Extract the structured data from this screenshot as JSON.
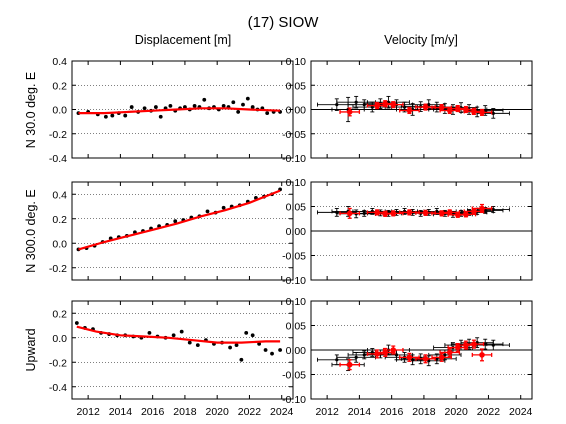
{
  "figure": {
    "title": "(17) SIOW",
    "disp_header": "Displacement [m]",
    "vel_header": "Velocity [m/y]"
  },
  "rows": [
    {
      "ylabel": "N 30.0 deg. E"
    },
    {
      "ylabel": "N 300.0 deg. E"
    },
    {
      "ylabel": "Upward"
    }
  ],
  "chart_data": [
    {
      "type": "scatter",
      "panel": "displacement-north30",
      "ylabel": "N 30.0 deg. E",
      "xlim": [
        2011,
        2024.7
      ],
      "ylim": [
        -0.4,
        0.4
      ],
      "xticks": [
        2012,
        2014,
        2016,
        2018,
        2020,
        2022,
        2024
      ],
      "yticks": [
        "0.4",
        "0.2",
        "0.0",
        "-0.2",
        "-0.4"
      ],
      "grid": "horizontal dotted",
      "series": [
        {
          "kind": "points",
          "color": "#000000",
          "x": [
            2011.4,
            2012.0,
            2012.6,
            2013.1,
            2013.5,
            2013.9,
            2014.3,
            2014.7,
            2015.1,
            2015.5,
            2015.9,
            2016.2,
            2016.5,
            2016.8,
            2017.1,
            2017.4,
            2017.7,
            2018.0,
            2018.3,
            2018.6,
            2018.9,
            2019.2,
            2019.5,
            2019.8,
            2020.1,
            2020.4,
            2020.7,
            2021.0,
            2021.3,
            2021.6,
            2021.9,
            2022.2,
            2022.5,
            2022.8,
            2023.1,
            2023.5,
            2023.9
          ],
          "y": [
            -0.03,
            -0.02,
            -0.04,
            -0.06,
            -0.05,
            -0.03,
            -0.05,
            0.02,
            -0.02,
            0.01,
            -0.01,
            0.02,
            -0.06,
            0.01,
            0.03,
            -0.01,
            0.01,
            0.02,
            0.0,
            0.03,
            0.02,
            0.08,
            0.01,
            0.02,
            0.0,
            0.03,
            0.02,
            0.06,
            -0.02,
            0.04,
            0.09,
            0.02,
            0.0,
            0.01,
            -0.03,
            -0.02,
            -0.02
          ]
        },
        {
          "kind": "fit",
          "color": "#ff0000",
          "x": [
            2011.4,
            2013.0,
            2014.5,
            2016.0,
            2017.5,
            2019.0,
            2020.5,
            2022.0,
            2023.9
          ],
          "y": [
            -0.03,
            -0.03,
            -0.02,
            -0.01,
            0.0,
            0.01,
            0.01,
            0.0,
            -0.01
          ]
        }
      ]
    },
    {
      "type": "scatter",
      "panel": "velocity-north30",
      "xlim": [
        2011,
        2024.7
      ],
      "ylim": [
        -0.1,
        0.1
      ],
      "xticks": [
        2012,
        2014,
        2016,
        2018,
        2020,
        2022,
        2024
      ],
      "yticks": [
        "0.10",
        "0.05",
        "0.00",
        "-0.05",
        "-0.10"
      ],
      "zero_line": true,
      "series": [
        {
          "kind": "estimates",
          "color": "#000000",
          "x": [
            2012.6,
            2013.3,
            2013.8,
            2014.3,
            2014.8,
            2015.3,
            2015.8,
            2016.3,
            2016.8,
            2017.3,
            2017.8,
            2018.3,
            2018.8,
            2019.3,
            2019.8,
            2020.3,
            2020.8,
            2021.3,
            2021.8,
            2022.3
          ],
          "y": [
            0.01,
            0.0,
            0.015,
            0.01,
            0.005,
            0.012,
            0.015,
            0.01,
            0.005,
            0.0,
            0.006,
            0.01,
            0.005,
            0.002,
            0.0,
            0.004,
            0.0,
            -0.005,
            -0.002,
            -0.008
          ],
          "xerr": [
            1.2,
            1.0,
            1.2,
            1.0,
            1.2,
            1.0,
            1.3,
            1.0,
            1.2,
            1.0,
            1.2,
            1.0,
            1.2,
            1.0,
            1.2,
            1.0,
            1.1,
            1.0,
            1.1,
            1.0
          ],
          "yerr": [
            0.012,
            0.025,
            0.012,
            0.01,
            0.01,
            0.01,
            0.012,
            0.01,
            0.01,
            0.012,
            0.01,
            0.01,
            0.01,
            0.01,
            0.01,
            0.01,
            0.01,
            0.01,
            0.01,
            0.01
          ]
        },
        {
          "kind": "highlighted",
          "color": "#ff0000",
          "x": [
            2013.4,
            2015.1,
            2015.6,
            2016.1,
            2017.1,
            2018.1,
            2019.1,
            2019.6,
            2020.1,
            2020.6,
            2021.1,
            2021.6
          ],
          "y": [
            -0.005,
            0.008,
            0.012,
            0.01,
            -0.002,
            0.005,
            0.004,
            -0.002,
            0.002,
            0.0,
            -0.004,
            -0.006
          ],
          "xerr": [
            0.6,
            0.6,
            0.6,
            0.6,
            0.6,
            0.6,
            0.6,
            0.6,
            0.6,
            0.6,
            0.6,
            0.6
          ],
          "yerr": [
            0.008,
            0.006,
            0.006,
            0.006,
            0.006,
            0.006,
            0.006,
            0.006,
            0.006,
            0.006,
            0.006,
            0.006
          ]
        }
      ]
    },
    {
      "type": "scatter",
      "panel": "displacement-north300",
      "ylabel": "N 300.0 deg. E",
      "xlim": [
        2011,
        2024.7
      ],
      "ylim": [
        -0.3,
        0.5
      ],
      "xticks": [
        2012,
        2014,
        2016,
        2018,
        2020,
        2022,
        2024
      ],
      "yticks": [
        "0.4",
        "0.2",
        "0.0",
        "-0.2"
      ],
      "grid": "horizontal dotted",
      "series": [
        {
          "kind": "points",
          "color": "#000000",
          "x": [
            2011.4,
            2011.9,
            2012.4,
            2012.9,
            2013.4,
            2013.9,
            2014.4,
            2014.9,
            2015.4,
            2015.9,
            2016.4,
            2016.9,
            2017.4,
            2017.9,
            2018.4,
            2018.9,
            2019.4,
            2019.9,
            2020.4,
            2020.9,
            2021.4,
            2021.9,
            2022.4,
            2022.9,
            2023.4,
            2023.9
          ],
          "y": [
            -0.05,
            -0.04,
            -0.02,
            0.01,
            0.04,
            0.05,
            0.06,
            0.09,
            0.1,
            0.12,
            0.14,
            0.15,
            0.18,
            0.19,
            0.21,
            0.22,
            0.26,
            0.25,
            0.29,
            0.3,
            0.31,
            0.34,
            0.37,
            0.38,
            0.4,
            0.44
          ]
        },
        {
          "kind": "fit",
          "color": "#ff0000",
          "x": [
            2011.4,
            2013.0,
            2014.5,
            2016.0,
            2017.5,
            2019.0,
            2020.5,
            2022.0,
            2023.9
          ],
          "y": [
            -0.05,
            0.01,
            0.06,
            0.11,
            0.16,
            0.22,
            0.27,
            0.33,
            0.43
          ]
        }
      ]
    },
    {
      "type": "scatter",
      "panel": "velocity-north300",
      "xlim": [
        2011,
        2024.7
      ],
      "ylim": [
        -0.1,
        0.1
      ],
      "xticks": [
        2012,
        2014,
        2016,
        2018,
        2020,
        2022,
        2024
      ],
      "yticks": [
        "0.10",
        "0.05",
        "0.00",
        "-0.05",
        "-0.10"
      ],
      "zero_line": true,
      "series": [
        {
          "kind": "estimates",
          "color": "#000000",
          "x": [
            2012.6,
            2013.3,
            2013.8,
            2014.3,
            2014.8,
            2015.3,
            2015.8,
            2016.3,
            2016.8,
            2017.3,
            2017.8,
            2018.3,
            2018.8,
            2019.3,
            2019.8,
            2020.3,
            2020.8,
            2021.3,
            2021.8,
            2022.3
          ],
          "y": [
            0.038,
            0.04,
            0.035,
            0.036,
            0.04,
            0.037,
            0.036,
            0.038,
            0.04,
            0.038,
            0.036,
            0.038,
            0.04,
            0.036,
            0.034,
            0.036,
            0.038,
            0.04,
            0.042,
            0.044
          ],
          "xerr": [
            1.2,
            1.0,
            1.2,
            1.0,
            1.2,
            1.0,
            1.3,
            1.0,
            1.2,
            1.0,
            1.2,
            1.0,
            1.2,
            1.0,
            1.2,
            1.0,
            1.1,
            1.0,
            1.1,
            1.0
          ],
          "yerr": [
            0.008,
            0.01,
            0.008,
            0.006,
            0.006,
            0.006,
            0.006,
            0.006,
            0.006,
            0.006,
            0.006,
            0.006,
            0.006,
            0.006,
            0.006,
            0.006,
            0.006,
            0.006,
            0.006,
            0.006
          ]
        },
        {
          "kind": "highlighted",
          "color": "#ff0000",
          "x": [
            2013.4,
            2015.1,
            2015.6,
            2016.1,
            2017.1,
            2018.1,
            2019.1,
            2019.6,
            2020.1,
            2020.6,
            2021.1,
            2021.6
          ],
          "y": [
            0.036,
            0.038,
            0.035,
            0.036,
            0.038,
            0.037,
            0.036,
            0.038,
            0.033,
            0.034,
            0.04,
            0.046
          ],
          "xerr": [
            0.6,
            0.6,
            0.6,
            0.6,
            0.6,
            0.6,
            0.6,
            0.6,
            0.6,
            0.6,
            0.6,
            0.6
          ],
          "yerr": [
            0.01,
            0.005,
            0.005,
            0.005,
            0.005,
            0.005,
            0.005,
            0.005,
            0.005,
            0.005,
            0.005,
            0.008
          ]
        }
      ]
    },
    {
      "type": "scatter",
      "panel": "displacement-upward",
      "ylabel": "Upward",
      "xlim": [
        2011,
        2024.7
      ],
      "ylim": [
        -0.5,
        0.3
      ],
      "xticks": [
        2012,
        2014,
        2016,
        2018,
        2020,
        2022,
        2024
      ],
      "yticks": [
        "0.2",
        "0.0",
        "-0.2",
        "-0.4"
      ],
      "grid": "horizontal dotted",
      "series": [
        {
          "kind": "points",
          "color": "#000000",
          "x": [
            2011.3,
            2011.8,
            2012.3,
            2012.8,
            2013.3,
            2013.8,
            2014.3,
            2014.8,
            2015.3,
            2015.8,
            2016.3,
            2016.8,
            2017.3,
            2017.8,
            2018.3,
            2018.8,
            2019.3,
            2019.8,
            2020.3,
            2020.8,
            2021.2,
            2021.5,
            2021.8,
            2022.2,
            2022.6,
            2023.0,
            2023.4,
            2023.9
          ],
          "y": [
            0.12,
            0.08,
            0.07,
            0.04,
            0.03,
            0.02,
            0.02,
            0.01,
            0.0,
            0.04,
            0.01,
            0.0,
            0.02,
            0.05,
            -0.04,
            -0.06,
            -0.02,
            -0.05,
            -0.04,
            -0.08,
            -0.06,
            -0.18,
            0.04,
            0.02,
            -0.05,
            -0.1,
            -0.13,
            -0.1
          ]
        },
        {
          "kind": "fit",
          "color": "#ff0000",
          "x": [
            2011.3,
            2012.5,
            2014.0,
            2015.5,
            2017.0,
            2018.5,
            2020.0,
            2021.5,
            2023.0,
            2023.9
          ],
          "y": [
            0.09,
            0.05,
            0.02,
            0.01,
            0.0,
            -0.02,
            -0.04,
            -0.04,
            -0.03,
            -0.03
          ]
        }
      ]
    },
    {
      "type": "scatter",
      "panel": "velocity-upward",
      "xlim": [
        2011,
        2024.7
      ],
      "ylim": [
        -0.1,
        0.1
      ],
      "xticks": [
        2012,
        2014,
        2016,
        2018,
        2020,
        2022,
        2024
      ],
      "yticks": [
        "0.10",
        "0.05",
        "0.00",
        "-0.05",
        "-0.10"
      ],
      "zero_line": true,
      "series": [
        {
          "kind": "estimates",
          "color": "#000000",
          "x": [
            2012.6,
            2013.3,
            2013.8,
            2014.3,
            2014.8,
            2015.3,
            2015.8,
            2016.3,
            2016.8,
            2017.3,
            2017.8,
            2018.3,
            2018.8,
            2019.3,
            2019.8,
            2020.3,
            2020.8,
            2021.3,
            2021.8,
            2022.3
          ],
          "y": [
            -0.02,
            -0.03,
            -0.015,
            -0.01,
            -0.005,
            -0.008,
            0.0,
            -0.01,
            -0.015,
            -0.02,
            -0.018,
            -0.022,
            -0.018,
            -0.01,
            0.005,
            0.01,
            0.012,
            0.015,
            0.012,
            0.01
          ],
          "xerr": [
            1.2,
            1.0,
            1.2,
            1.0,
            1.2,
            1.0,
            1.3,
            1.0,
            1.2,
            1.0,
            1.2,
            1.0,
            1.2,
            1.0,
            1.2,
            1.0,
            1.1,
            1.0,
            1.1,
            1.0
          ],
          "yerr": [
            0.01,
            0.012,
            0.01,
            0.008,
            0.008,
            0.008,
            0.01,
            0.01,
            0.01,
            0.01,
            0.01,
            0.01,
            0.01,
            0.01,
            0.01,
            0.01,
            0.01,
            0.01,
            0.01,
            0.01
          ]
        },
        {
          "kind": "highlighted",
          "color": "#ff0000",
          "x": [
            2013.4,
            2015.1,
            2015.6,
            2016.1,
            2017.1,
            2018.1,
            2019.1,
            2019.6,
            2020.1,
            2020.6,
            2021.1,
            2021.6
          ],
          "y": [
            -0.03,
            -0.008,
            -0.005,
            0.0,
            -0.015,
            -0.018,
            -0.015,
            -0.005,
            0.005,
            0.01,
            0.012,
            -0.01
          ],
          "xerr": [
            0.6,
            0.6,
            0.6,
            0.6,
            0.6,
            0.6,
            0.6,
            0.6,
            0.6,
            0.6,
            0.6,
            0.6
          ],
          "yerr": [
            0.01,
            0.008,
            0.008,
            0.008,
            0.008,
            0.008,
            0.008,
            0.008,
            0.008,
            0.008,
            0.008,
            0.012
          ]
        }
      ]
    }
  ]
}
